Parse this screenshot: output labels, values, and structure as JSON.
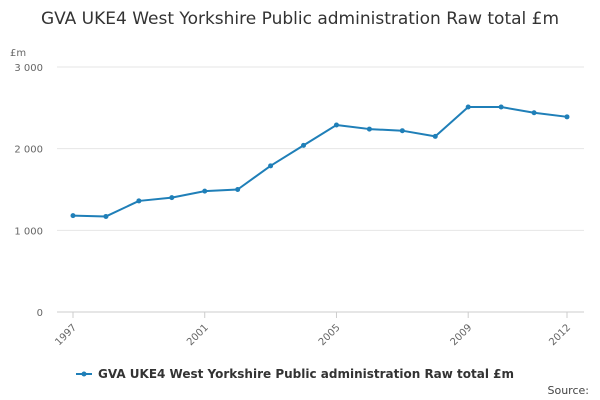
{
  "chart_data": {
    "type": "line",
    "title": "GVA UKE4 West Yorkshire Public administration Raw total £m",
    "ylabel": "£m",
    "xlabel": "",
    "x": [
      1997,
      1998,
      1999,
      2000,
      2001,
      2002,
      2003,
      2004,
      2005,
      2006,
      2007,
      2008,
      2009,
      2010,
      2011,
      2012
    ],
    "x_tick_labels": [
      "1997",
      "2001",
      "2005",
      "2009",
      "2012"
    ],
    "y_tick_labels": [
      "0",
      "1 000",
      "2 000",
      "3 000"
    ],
    "ylim": [
      0,
      3000
    ],
    "y_ticks": [
      0,
      1000,
      2000,
      3000
    ],
    "grid": true,
    "legend_position": "bottom",
    "series": [
      {
        "name": "GVA UKE4 West Yorkshire Public administration Raw total £m",
        "color": "#1f7fb8",
        "values": [
          1180,
          1170,
          1360,
          1400,
          1480,
          1500,
          1790,
          2040,
          2290,
          2240,
          2220,
          2150,
          2510,
          2510,
          2440,
          2390
        ]
      }
    ],
    "source": "Source:"
  }
}
